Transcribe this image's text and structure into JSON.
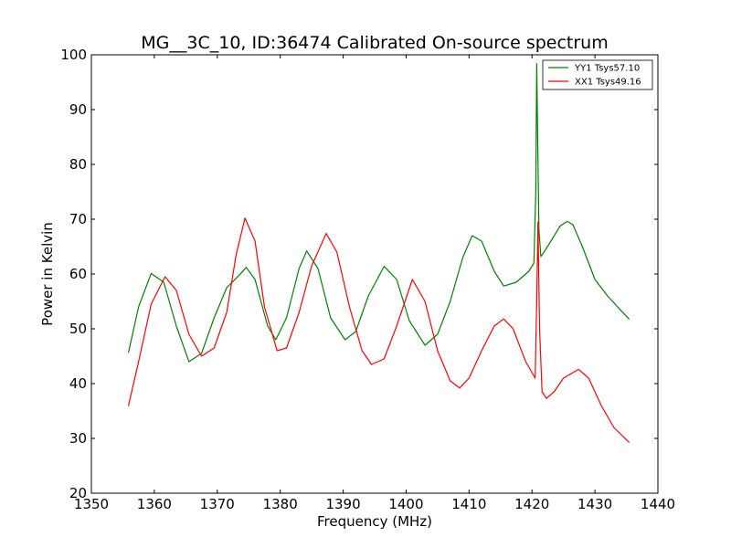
{
  "chart_data": {
    "type": "line",
    "title": "MG__3C_10, ID:36474 Calibrated On-source spectrum",
    "xlabel": "Frequency (MHz)",
    "ylabel": "Power in Kelvin",
    "xlim": [
      1350,
      1440
    ],
    "ylim": [
      20,
      100
    ],
    "xticks": [
      "1350",
      "1360",
      "1370",
      "1380",
      "1390",
      "1400",
      "1410",
      "1420",
      "1430",
      "1440"
    ],
    "yticks": [
      "20",
      "30",
      "40",
      "50",
      "60",
      "70",
      "80",
      "90",
      "100"
    ],
    "grid": false,
    "legend_position": "top-right",
    "series": [
      {
        "name": "YY1 Tsys57.10",
        "color": "#008000",
        "x": [
          1355.9,
          1357.5,
          1359.5,
          1361.5,
          1363.5,
          1365.5,
          1367.5,
          1369.5,
          1371.5,
          1373.5,
          1374.6,
          1376.0,
          1378.0,
          1379.3,
          1381.0,
          1383.0,
          1384.2,
          1386.0,
          1388.0,
          1390.3,
          1392.0,
          1394.0,
          1396.5,
          1398.5,
          1400.5,
          1403.0,
          1405.0,
          1407.0,
          1409.0,
          1410.5,
          1412.0,
          1414.0,
          1415.5,
          1417.5,
          1419.5,
          1420.3,
          1420.6,
          1420.75,
          1420.9,
          1421.1,
          1421.4,
          1421.8,
          1423.0,
          1424.5,
          1425.6,
          1426.5,
          1428.0,
          1430.0,
          1432.0,
          1434.0,
          1435.4
        ],
        "values": [
          45.7,
          54.0,
          60.1,
          58.5,
          50.5,
          44.0,
          45.5,
          52.0,
          57.5,
          59.8,
          61.2,
          59.0,
          50.5,
          48.0,
          52.0,
          61.0,
          64.2,
          61.0,
          52.0,
          48.0,
          49.5,
          56.0,
          61.4,
          59.0,
          51.5,
          47.0,
          49.0,
          55.0,
          63.0,
          67.0,
          66.0,
          60.5,
          57.8,
          58.5,
          60.5,
          62.0,
          75.0,
          98.4,
          85.0,
          68.0,
          63.2,
          63.8,
          66.0,
          68.8,
          69.6,
          69.0,
          65.0,
          59.0,
          56.0,
          53.5,
          51.8
        ]
      },
      {
        "name": "XX1 Tsys49.16",
        "color": "#ff0000",
        "x": [
          1355.9,
          1357.5,
          1359.5,
          1361.7,
          1363.5,
          1365.5,
          1367.5,
          1369.5,
          1371.5,
          1373.0,
          1374.4,
          1376.0,
          1377.5,
          1379.5,
          1381.0,
          1383.0,
          1385.0,
          1387.3,
          1389.0,
          1391.0,
          1393.0,
          1394.5,
          1396.5,
          1398.5,
          1401.0,
          1403.0,
          1405.0,
          1407.0,
          1408.5,
          1410.0,
          1412.0,
          1414.0,
          1415.5,
          1417.0,
          1419.0,
          1420.5,
          1420.75,
          1420.95,
          1421.2,
          1421.6,
          1422.3,
          1423.5,
          1425.0,
          1427.4,
          1429.0,
          1431.0,
          1433.0,
          1435.4
        ],
        "values": [
          36.0,
          44.0,
          54.5,
          59.5,
          57.0,
          49.0,
          45.0,
          46.5,
          53.0,
          63.5,
          70.2,
          66.0,
          54.0,
          46.0,
          46.5,
          53.0,
          61.5,
          67.4,
          64.0,
          54.0,
          46.0,
          43.5,
          44.5,
          50.5,
          59.0,
          55.0,
          46.0,
          40.5,
          39.2,
          41.0,
          46.0,
          50.5,
          51.8,
          50.0,
          44.0,
          41.0,
          55.0,
          69.5,
          50.0,
          38.5,
          37.3,
          38.5,
          41.0,
          42.6,
          41.0,
          36.0,
          32.0,
          29.3
        ]
      }
    ]
  }
}
